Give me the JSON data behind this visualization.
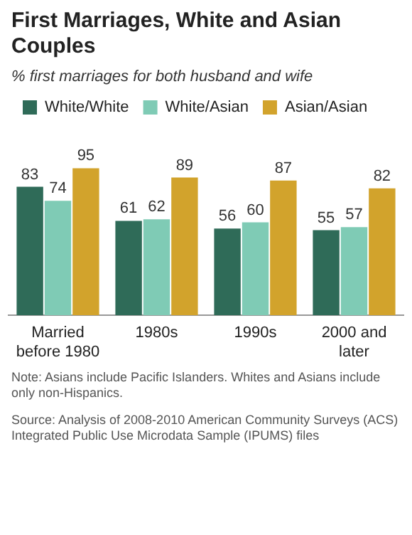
{
  "chart_data": {
    "type": "bar",
    "title": "First Marriages, White and Asian Couples",
    "subtitle": "% first marriages for both husband and wife",
    "categories": [
      "Married before 1980",
      "1980s",
      "1990s",
      "2000 and later"
    ],
    "series": [
      {
        "name": "White/White",
        "color": "#2f6b58",
        "values": [
          83,
          61,
          56,
          55
        ]
      },
      {
        "name": "White/Asian",
        "color": "#7fcbb5",
        "values": [
          74,
          62,
          60,
          57
        ]
      },
      {
        "name": "Asian/Asian",
        "color": "#d2a32c",
        "values": [
          95,
          89,
          87,
          82
        ]
      }
    ],
    "data_labels": true,
    "legend": "top left",
    "grid": false,
    "annotations": [
      "Note: Asians include Pacific Islanders. Whites and Asians include only non-Hispanics.",
      "Source: Analysis of 2008-2010 American Community Surveys (ACS) Integrated Public Use Microdata Sample (IPUMS) files"
    ]
  }
}
